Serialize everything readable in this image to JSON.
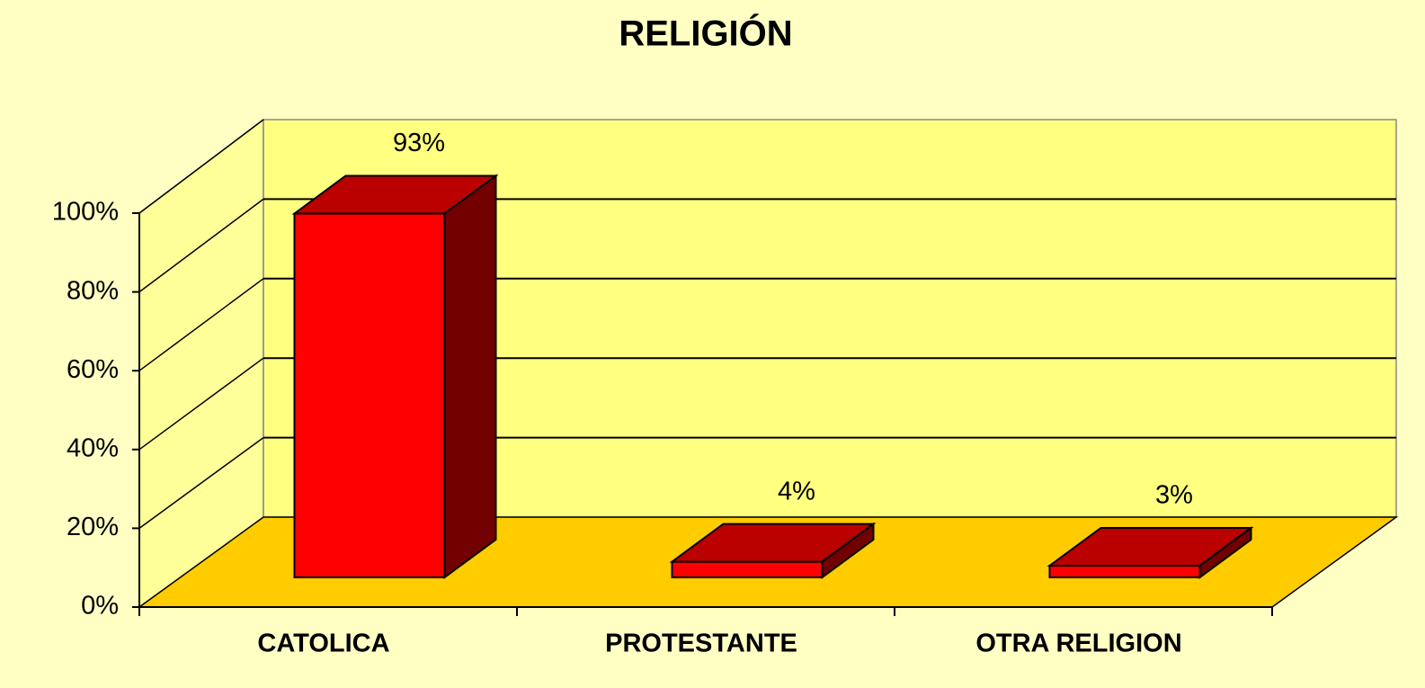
{
  "chart_data": {
    "type": "bar3d",
    "title": "RELIGIÓN",
    "categories": [
      "CATOLICA",
      "PROTESTANTE",
      "OTRA RELIGION"
    ],
    "values": [
      93,
      4,
      3
    ],
    "value_labels": [
      "93%",
      "4%",
      "3%"
    ],
    "color": "#ff0000",
    "ylim": [
      0,
      100
    ],
    "yticks": [
      {
        "value": 0,
        "label": "0%"
      },
      {
        "value": 20,
        "label": "20%"
      },
      {
        "value": 40,
        "label": "40%"
      },
      {
        "value": 60,
        "label": "60%"
      },
      {
        "value": 80,
        "label": "80%"
      },
      {
        "value": 100,
        "label": "100%"
      }
    ],
    "grid": true
  }
}
